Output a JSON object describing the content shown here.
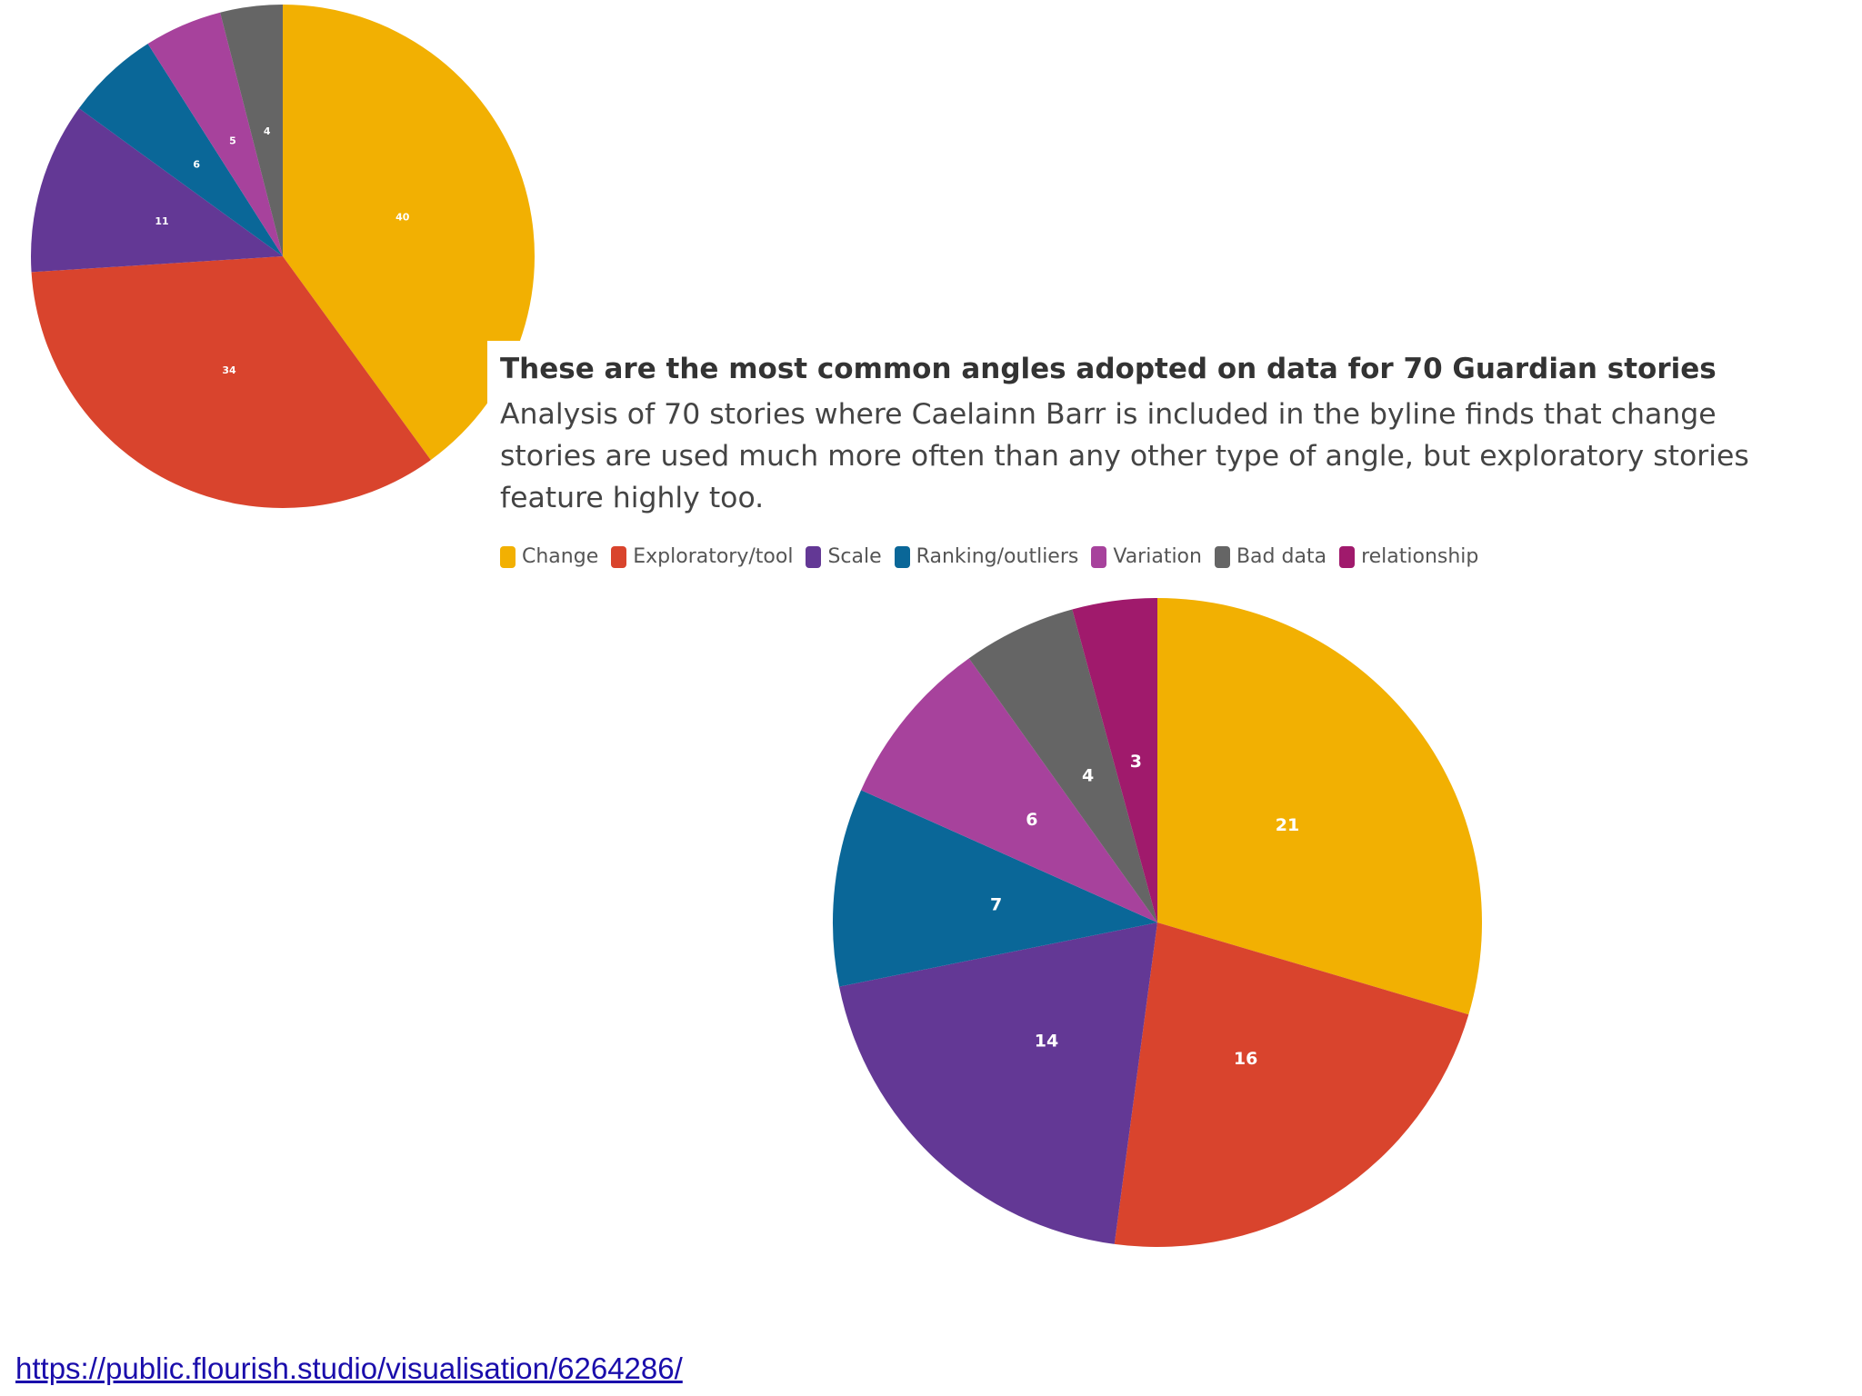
{
  "chart_data": [
    {
      "type": "pie",
      "categories": [
        "Change",
        "Exploratory/tool",
        "Scale",
        "Ranking/outliers",
        "Variation",
        "Bad data"
      ],
      "values": [
        40,
        34,
        11,
        6,
        5,
        4
      ],
      "colors": [
        "#f2b002",
        "#d9442d",
        "#633895",
        "#0a6798",
        "#a7429c",
        "#656565"
      ],
      "title": ""
    },
    {
      "type": "pie",
      "title": "These are the most common angles adopted on data for 70 Guardian stories",
      "subtitle": "Analysis of 70 stories where Caelainn Barr is included in the byline finds that change stories are used much more often than any other type of angle, but exploratory stories feature highly too.",
      "categories": [
        "Change",
        "Exploratory/tool",
        "Scale",
        "Ranking/outliers",
        "Variation",
        "Bad data",
        "relationship"
      ],
      "values": [
        21,
        16,
        14,
        7,
        6,
        4,
        3
      ],
      "colors": [
        "#f2b002",
        "#d9442d",
        "#633895",
        "#0a6798",
        "#a7429c",
        "#656565",
        "#a01a6c"
      ],
      "legend_position": "top-left"
    }
  ],
  "source_link": "https://public.flourish.studio/visualisation/6264286/"
}
